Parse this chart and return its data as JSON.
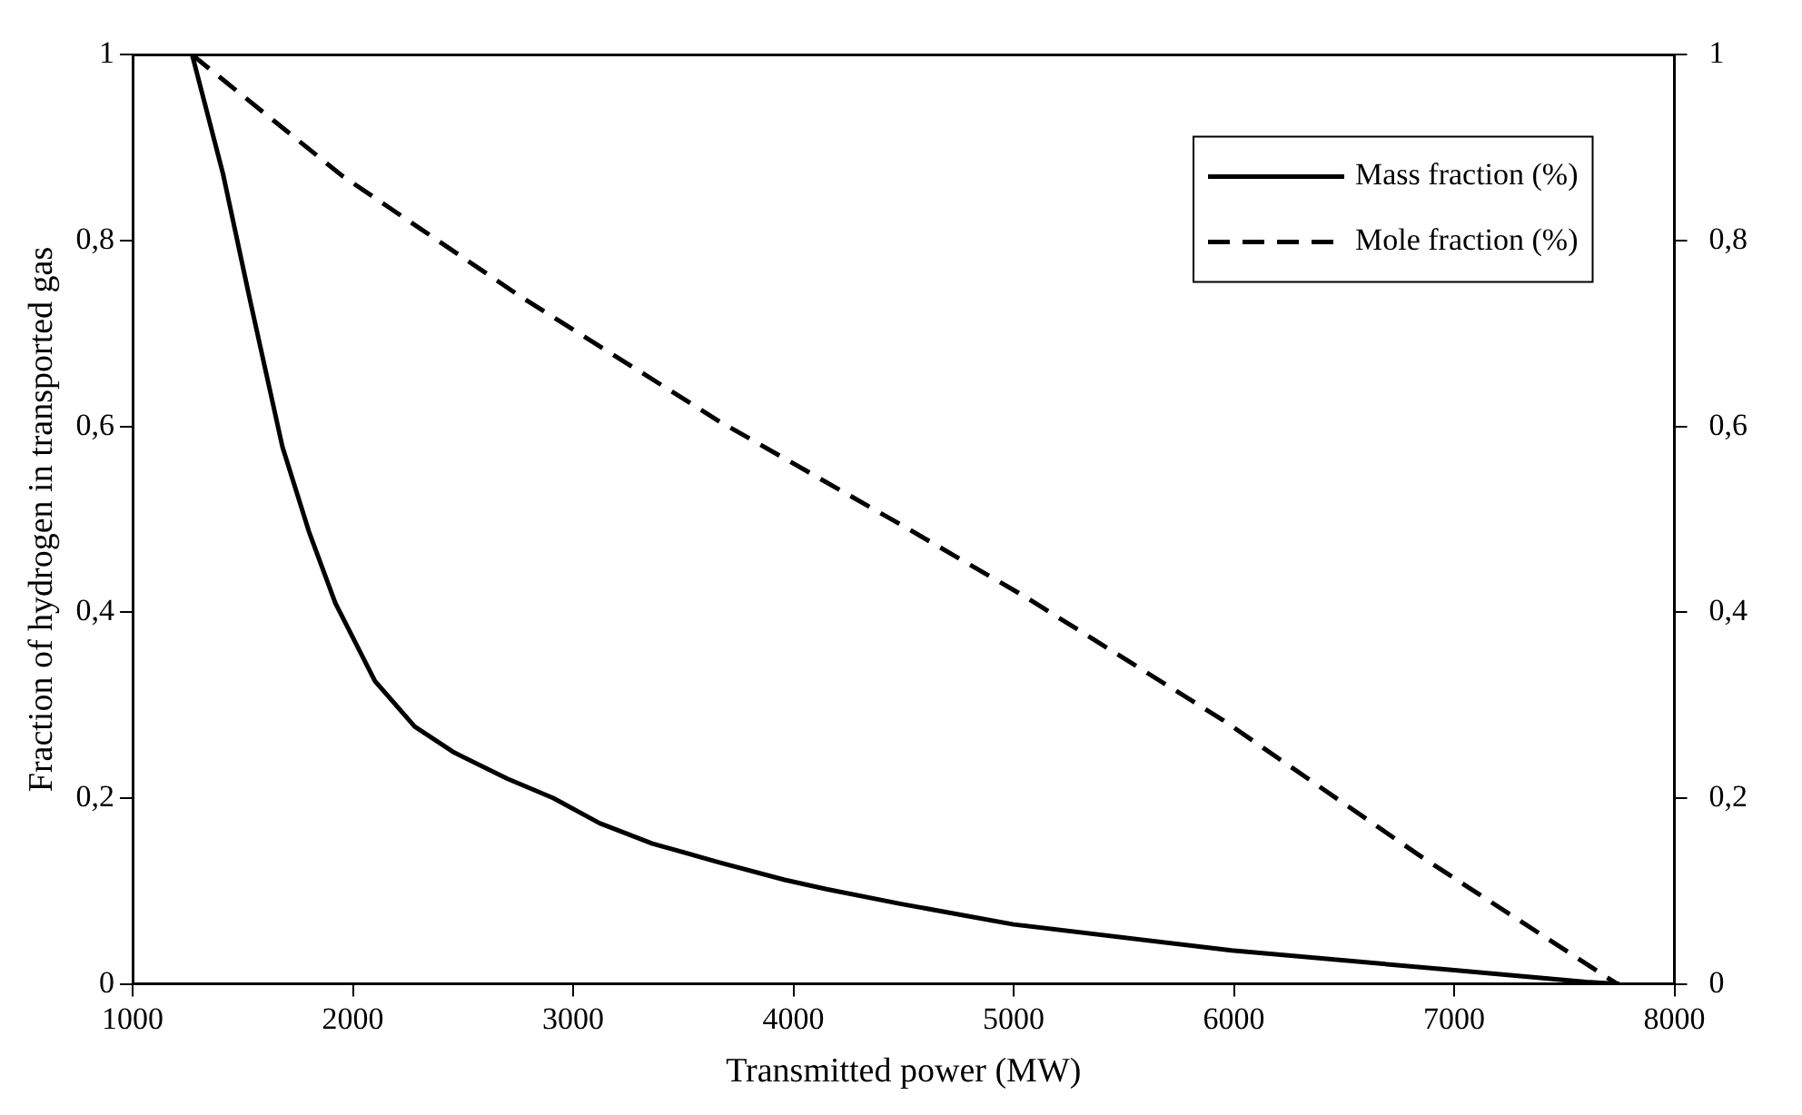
{
  "chart_data": {
    "type": "line",
    "xlabel": "Transmitted power (MW)",
    "ylabel": "Fraction of hydrogen in transported gas",
    "xlim": [
      1000,
      8000
    ],
    "xticks": [
      1000,
      2000,
      3000,
      4000,
      5000,
      6000,
      7000,
      8000
    ],
    "ylim": [
      0,
      1
    ],
    "yticks": [
      0,
      {
        "value": 0.2,
        "label": "0,2"
      },
      {
        "value": 0.4,
        "label": "0,4"
      },
      {
        "value": 0.6,
        "label": "0,6"
      },
      {
        "value": 0.8,
        "label": "0,8"
      },
      1
    ],
    "y2lim": [
      0,
      1
    ],
    "y2ticks": [
      0,
      {
        "value": 0.2,
        "label": "0,2"
      },
      {
        "value": 0.4,
        "label": "0,4"
      },
      {
        "value": 0.6,
        "label": "0,6"
      },
      {
        "value": 0.8,
        "label": "0,8"
      },
      1
    ],
    "grid": false,
    "legend": "top right",
    "marker": "none",
    "series": [
      {
        "name": "Mass fraction (%)",
        "color": "#000000",
        "line_style": "solid",
        "x": [
          1270,
          1410,
          1530,
          1680,
          1800,
          1920,
          2100,
          2280,
          2460,
          2700,
          2910,
          3120,
          3360,
          3660,
          3960,
          4150,
          4490,
          5000,
          5990,
          6990,
          7600,
          7750
        ],
        "values": [
          1.0,
          0.872,
          0.739,
          0.578,
          0.487,
          0.41,
          0.326,
          0.277,
          0.249,
          0.221,
          0.2,
          0.173,
          0.151,
          0.131,
          0.112,
          0.102,
          0.086,
          0.064,
          0.036,
          0.015,
          0.002,
          0
        ]
      },
      {
        "name": "Mole fraction (%)",
        "color": "#000000",
        "line_style": "dashed",
        "x": [
          1270,
          1950,
          2760,
          3660,
          4490,
          5050,
          5950,
          6850,
          7740
        ],
        "values": [
          1.0,
          0.87,
          0.74,
          0.606,
          0.494,
          0.417,
          0.284,
          0.137,
          0
        ]
      }
    ]
  }
}
